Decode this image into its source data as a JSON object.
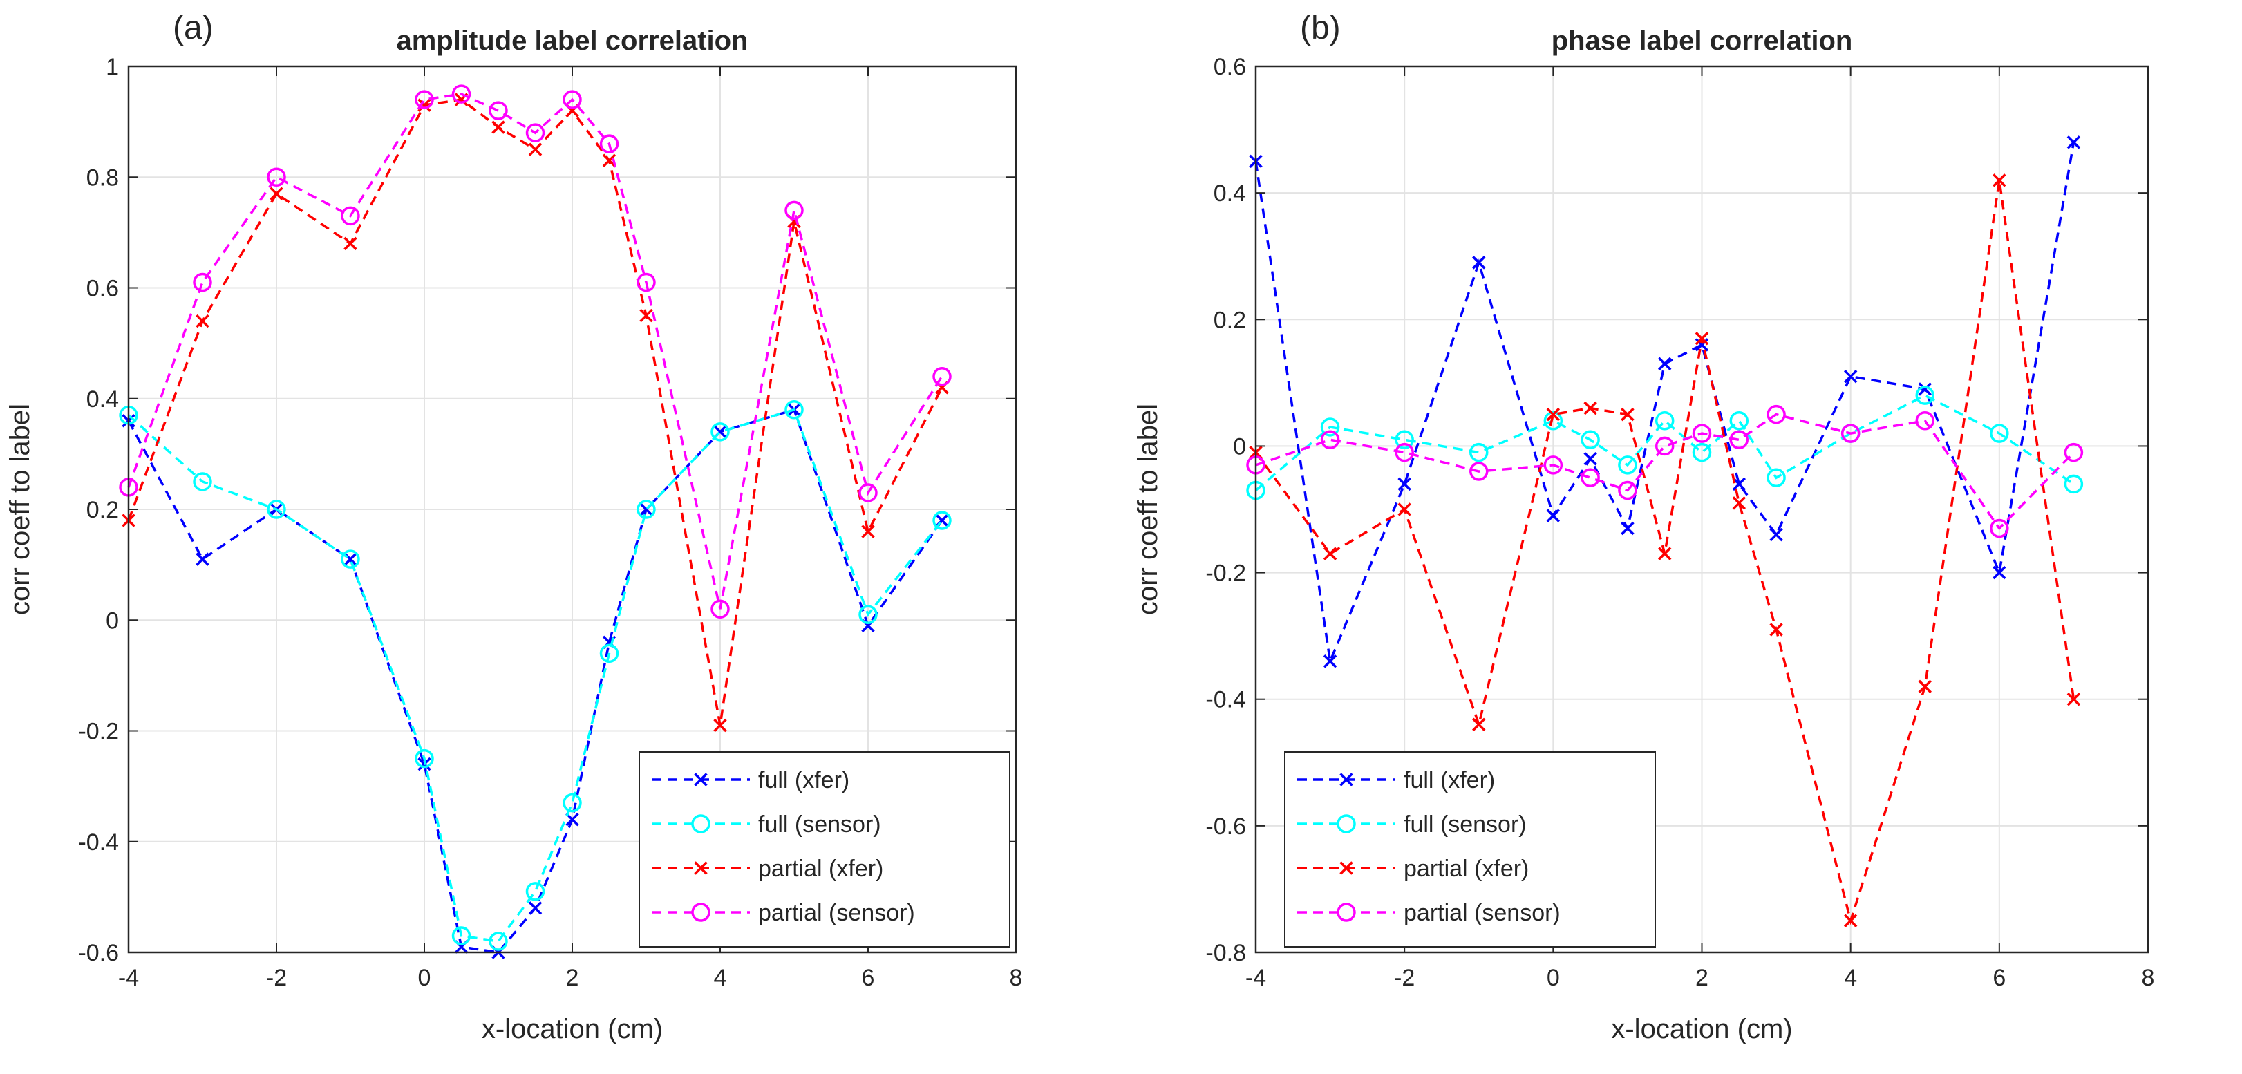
{
  "chart_data": [
    {
      "type": "line",
      "panel_label": "(a)",
      "title": "amplitude label correlation",
      "xlabel": "x-location (cm)",
      "ylabel": "corr coeff to label",
      "xlim": [
        -4,
        8
      ],
      "ylim": [
        -0.6,
        1
      ],
      "xticks": [
        -4,
        -2,
        0,
        2,
        4,
        6,
        8
      ],
      "yticks": [
        -0.6,
        -0.4,
        -0.2,
        0,
        0.2,
        0.4,
        0.6,
        0.8,
        1
      ],
      "grid": true,
      "legend_position": "bottom-right",
      "x": [
        -4,
        -3,
        -2,
        -1,
        0,
        0.5,
        1,
        1.5,
        2,
        2.5,
        3,
        4,
        5,
        6,
        7
      ],
      "series": [
        {
          "name": "full (xfer)",
          "color": "#0000FF",
          "marker": "x",
          "values": [
            0.36,
            0.11,
            0.2,
            0.11,
            -0.26,
            -0.59,
            -0.6,
            -0.52,
            -0.36,
            -0.04,
            0.2,
            0.34,
            0.38,
            -0.01,
            0.18
          ]
        },
        {
          "name": "full (sensor)",
          "color": "#00FFFF",
          "marker": "o",
          "values": [
            0.37,
            0.25,
            0.2,
            0.11,
            -0.25,
            -0.57,
            -0.58,
            -0.49,
            -0.33,
            -0.06,
            0.2,
            0.34,
            0.38,
            0.01,
            0.18
          ]
        },
        {
          "name": "partial (xfer)",
          "color": "#FF0000",
          "marker": "x",
          "values": [
            0.18,
            0.54,
            0.77,
            0.68,
            0.93,
            0.94,
            0.89,
            0.85,
            0.92,
            0.83,
            0.55,
            -0.19,
            0.72,
            0.16,
            0.42
          ]
        },
        {
          "name": "partial (sensor)",
          "color": "#FF00FF",
          "marker": "o",
          "values": [
            0.24,
            0.61,
            0.8,
            0.73,
            0.94,
            0.95,
            0.92,
            0.88,
            0.94,
            0.86,
            0.61,
            0.02,
            0.74,
            0.23,
            0.44
          ]
        }
      ]
    },
    {
      "type": "line",
      "panel_label": "(b)",
      "title": "phase label correlation",
      "xlabel": "x-location (cm)",
      "ylabel": "corr coeff to label",
      "xlim": [
        -4,
        8
      ],
      "ylim": [
        -0.8,
        0.6
      ],
      "xticks": [
        -4,
        -2,
        0,
        2,
        4,
        6,
        8
      ],
      "yticks": [
        -0.8,
        -0.6,
        -0.4,
        -0.2,
        0,
        0.2,
        0.4,
        0.6
      ],
      "grid": true,
      "legend_position": "bottom-left",
      "x": [
        -4,
        -3,
        -2,
        -1,
        0,
        0.5,
        1,
        1.5,
        2,
        2.5,
        3,
        4,
        5,
        6,
        7
      ],
      "series": [
        {
          "name": "full (xfer)",
          "color": "#0000FF",
          "marker": "x",
          "values": [
            0.45,
            -0.34,
            -0.06,
            0.29,
            -0.11,
            -0.02,
            -0.13,
            0.13,
            0.16,
            -0.06,
            -0.14,
            0.11,
            0.09,
            -0.2,
            0.48
          ]
        },
        {
          "name": "full (sensor)",
          "color": "#00FFFF",
          "marker": "o",
          "values": [
            -0.07,
            0.03,
            0.01,
            -0.01,
            0.04,
            0.01,
            -0.03,
            0.04,
            -0.01,
            0.04,
            -0.05,
            0.02,
            0.08,
            0.02,
            -0.06
          ]
        },
        {
          "name": "partial (xfer)",
          "color": "#FF0000",
          "marker": "x",
          "values": [
            -0.01,
            -0.17,
            -0.1,
            -0.44,
            0.05,
            0.06,
            0.05,
            -0.17,
            0.17,
            -0.09,
            -0.29,
            -0.75,
            -0.38,
            0.42,
            -0.4
          ]
        },
        {
          "name": "partial (sensor)",
          "color": "#FF00FF",
          "marker": "o",
          "values": [
            -0.03,
            0.01,
            -0.01,
            -0.04,
            -0.03,
            -0.05,
            -0.07,
            0.0,
            0.02,
            0.01,
            0.05,
            0.02,
            0.04,
            -0.13,
            -0.01
          ]
        }
      ]
    }
  ]
}
